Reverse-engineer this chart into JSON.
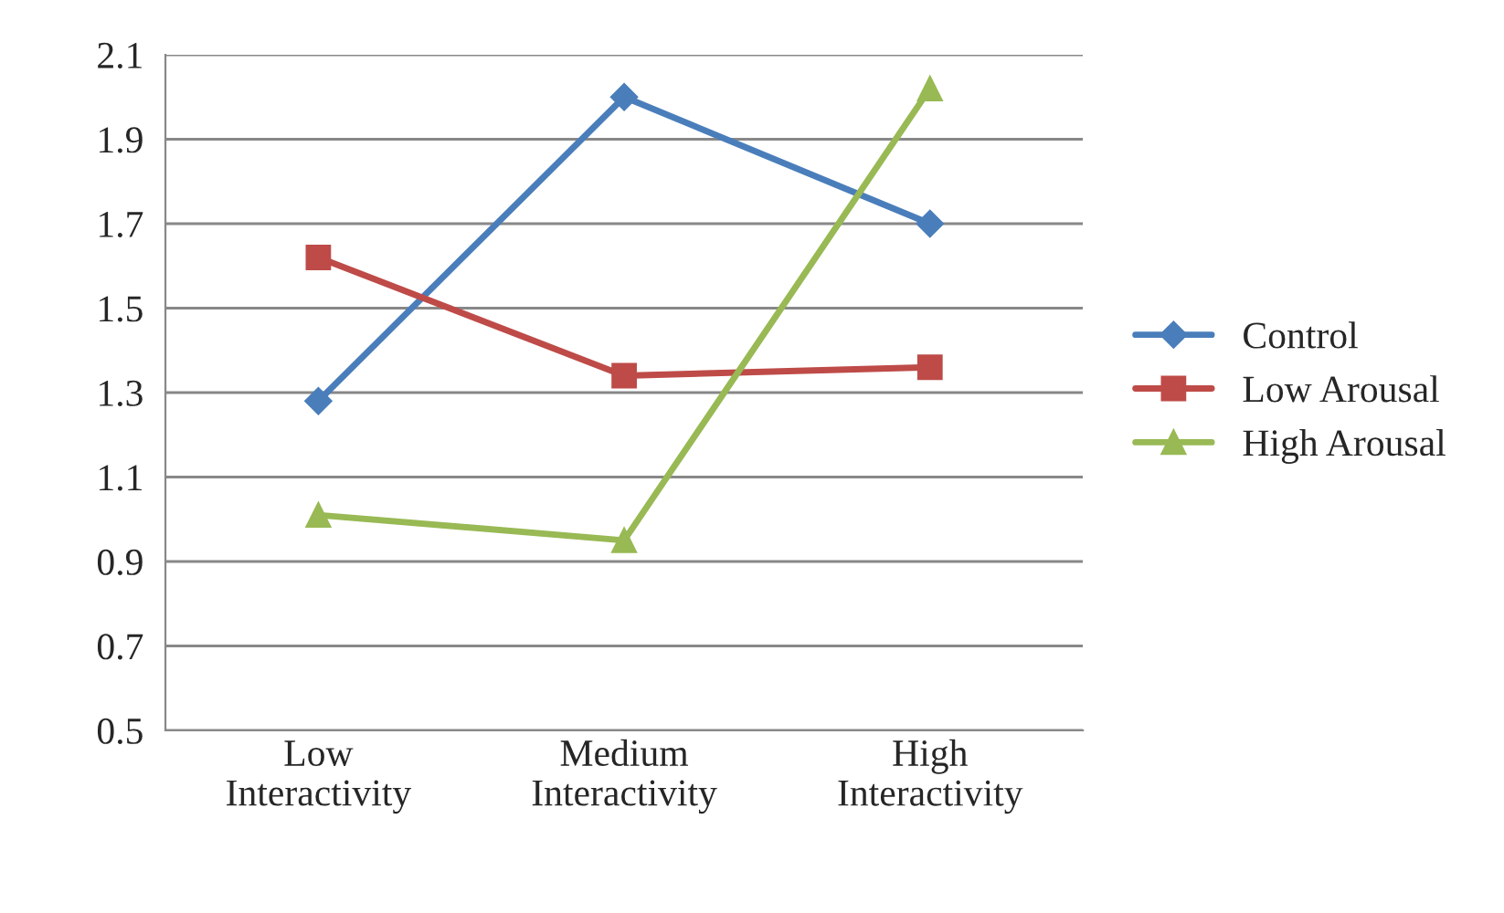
{
  "chart_data": {
    "type": "line",
    "categories": [
      "Low\nInteractivity",
      "Medium\nInteractivity",
      "High\nInteractivity"
    ],
    "series": [
      {
        "name": "Control",
        "color": "#4a7ebb",
        "marker": "diamond",
        "values": [
          1.28,
          2.0,
          1.7
        ]
      },
      {
        "name": "Low Arousal",
        "color": "#be4b48",
        "marker": "square",
        "values": [
          1.62,
          1.34,
          1.36
        ]
      },
      {
        "name": "High Arousal",
        "color": "#98b954",
        "marker": "triangle",
        "values": [
          1.01,
          0.95,
          2.02
        ]
      }
    ],
    "ylim": [
      0.5,
      2.1
    ],
    "yticks": [
      0.5,
      0.7,
      0.9,
      1.1,
      1.3,
      1.5,
      1.7,
      1.9,
      2.1
    ],
    "grid": "y",
    "legend": "right",
    "line_style": "solid"
  }
}
